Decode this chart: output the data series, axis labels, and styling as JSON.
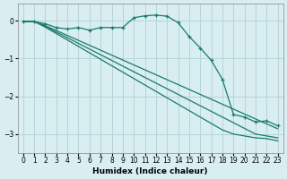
{
  "xlabel": "Humidex (Indice chaleur)",
  "ylabel": "",
  "bg_color": "#d8eef0",
  "grid_color": "#b8d4d8",
  "line_color": "#1a7a6e",
  "xlim": [
    -0.5,
    23.5
  ],
  "ylim": [
    -3.5,
    0.45
  ],
  "yticks": [
    0,
    -1,
    -2,
    -3
  ],
  "xticks": [
    0,
    1,
    2,
    3,
    4,
    5,
    6,
    7,
    8,
    9,
    10,
    11,
    12,
    13,
    14,
    15,
    16,
    17,
    18,
    19,
    20,
    21,
    22,
    23
  ],
  "series": [
    {
      "x": [
        0,
        1,
        2,
        3,
        4,
        5,
        6,
        7,
        8,
        9,
        10,
        11,
        12,
        13,
        14,
        15,
        16,
        17,
        18,
        19,
        20,
        21,
        22,
        23
      ],
      "y": [
        -0.02,
        -0.02,
        -0.08,
        -0.18,
        -0.22,
        -0.18,
        -0.25,
        -0.18,
        -0.18,
        -0.18,
        0.08,
        0.13,
        0.15,
        0.12,
        -0.05,
        -0.42,
        -0.72,
        -1.05,
        -1.55,
        -2.48,
        -2.55,
        -2.68,
        -2.65,
        -2.78
      ],
      "marker": "+"
    },
    {
      "x": [
        0,
        1,
        2,
        3,
        4,
        5,
        6,
        7,
        8,
        9,
        10,
        11,
        12,
        13,
        14,
        15,
        16,
        17,
        18,
        19,
        20,
        21,
        22,
        23
      ],
      "y": [
        -0.02,
        -0.02,
        -0.13,
        -0.26,
        -0.39,
        -0.52,
        -0.65,
        -0.78,
        -0.91,
        -1.04,
        -1.17,
        -1.3,
        -1.43,
        -1.56,
        -1.69,
        -1.82,
        -1.95,
        -2.08,
        -2.21,
        -2.34,
        -2.47,
        -2.6,
        -2.73,
        -2.86
      ],
      "marker": null
    },
    {
      "x": [
        0,
        1,
        2,
        3,
        4,
        5,
        6,
        7,
        8,
        9,
        10,
        11,
        12,
        13,
        14,
        15,
        16,
        17,
        18,
        19,
        20,
        21,
        22,
        23
      ],
      "y": [
        -0.02,
        -0.02,
        -0.15,
        -0.3,
        -0.45,
        -0.6,
        -0.75,
        -0.9,
        -1.05,
        -1.2,
        -1.35,
        -1.5,
        -1.65,
        -1.8,
        -1.95,
        -2.1,
        -2.25,
        -2.4,
        -2.55,
        -2.7,
        -2.85,
        -3.0,
        -3.05,
        -3.1
      ],
      "marker": null
    },
    {
      "x": [
        0,
        1,
        2,
        3,
        4,
        5,
        6,
        7,
        8,
        9,
        10,
        11,
        12,
        13,
        14,
        15,
        16,
        17,
        18,
        19,
        20,
        21,
        22,
        23
      ],
      "y": [
        -0.02,
        -0.02,
        -0.17,
        -0.34,
        -0.51,
        -0.68,
        -0.85,
        -1.02,
        -1.19,
        -1.36,
        -1.53,
        -1.7,
        -1.87,
        -2.04,
        -2.21,
        -2.38,
        -2.55,
        -2.72,
        -2.89,
        -3.0,
        -3.05,
        -3.1,
        -3.12,
        -3.18
      ],
      "marker": null
    }
  ]
}
